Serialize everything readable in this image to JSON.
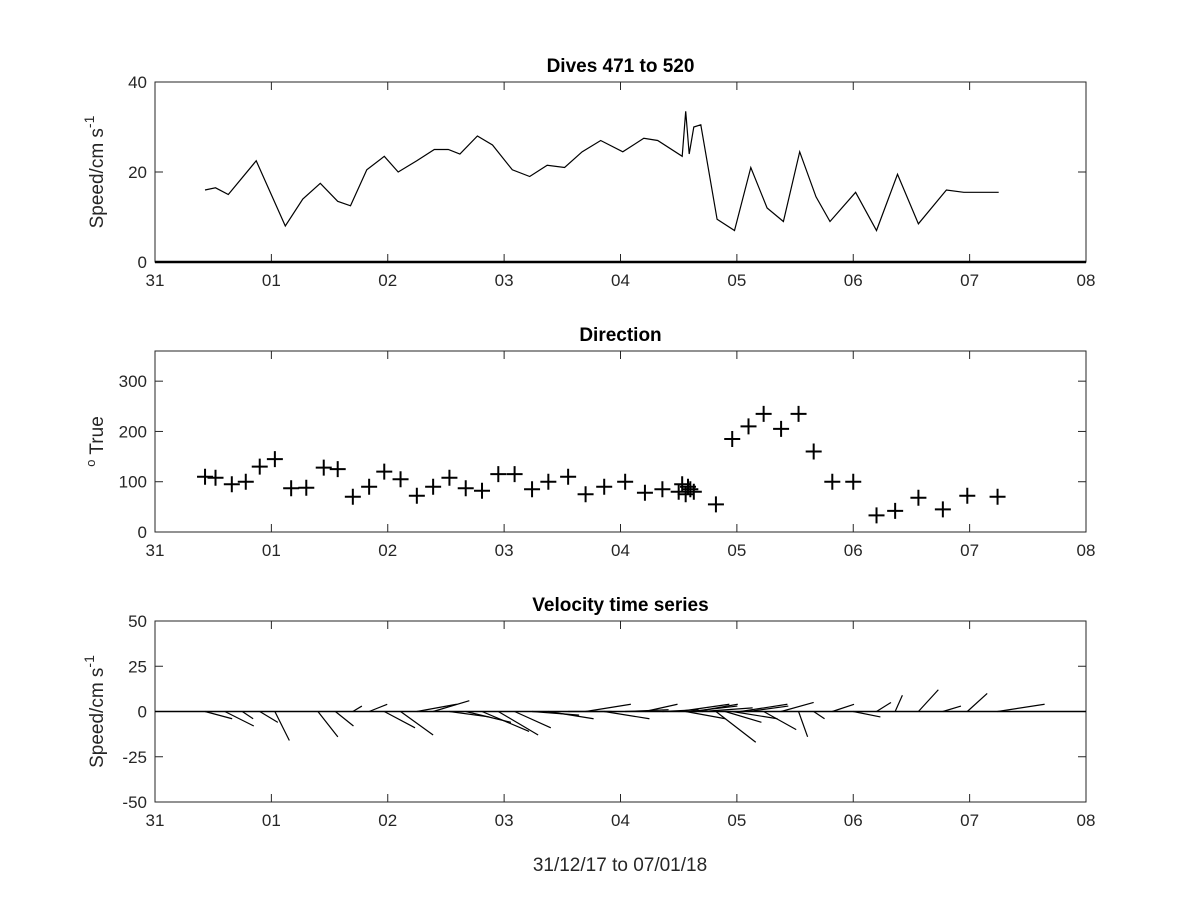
{
  "figure": {
    "xlabel": "31/12/17 to 07/01/18",
    "line_color": "#000000",
    "axes_color": "#262626",
    "background": "#ffffff"
  },
  "chart_data": [
    {
      "type": "line",
      "title": "Dives 471 to 520",
      "ylabel": "Speed/cm s",
      "ylabel_superscript": "-1",
      "x_unit": "days since 31/12/17 00:00",
      "xlim": [
        0,
        8
      ],
      "ylim": [
        0,
        40
      ],
      "x_ticks": [
        "31",
        "01",
        "02",
        "03",
        "04",
        "05",
        "06",
        "07",
        "08"
      ],
      "y_ticks": [
        "0",
        "20",
        "40"
      ],
      "series": [
        {
          "x": [
            0.43,
            0.52,
            0.63,
            0.87,
            1.12,
            1.27,
            1.42,
            1.57,
            1.68,
            1.82,
            1.97,
            2.09,
            2.25,
            2.4,
            2.52,
            2.62,
            2.77,
            2.9,
            3.07,
            3.22,
            3.37,
            3.52,
            3.67,
            3.83,
            4.02,
            4.2,
            4.32,
            4.53,
            4.56,
            4.59,
            4.63,
            4.69,
            4.83,
            4.98,
            5.12,
            5.26,
            5.4,
            5.54,
            5.68,
            5.8,
            6.02,
            6.2,
            6.38,
            6.56,
            6.8,
            6.95,
            7.25
          ],
          "y": [
            16,
            16.5,
            15,
            22.5,
            8,
            14,
            17.5,
            13.5,
            12.5,
            20.5,
            23.5,
            20,
            22.5,
            25,
            25,
            24,
            28,
            26,
            20.5,
            19,
            21.5,
            21,
            24.5,
            27,
            24.5,
            27.5,
            27,
            23.5,
            33.5,
            24,
            30,
            30.5,
            9.5,
            7,
            21,
            12,
            9,
            24.5,
            14.5,
            9,
            15.5,
            7,
            19.5,
            8.5,
            16,
            15.5,
            15.5
          ]
        }
      ]
    },
    {
      "type": "scatter",
      "title": "Direction",
      "ylabel": "True",
      "ylabel_prefix": "o",
      "marker": "+",
      "xlim": [
        0,
        8
      ],
      "ylim": [
        0,
        360
      ],
      "x_ticks": [
        "31",
        "01",
        "02",
        "03",
        "04",
        "05",
        "06",
        "07",
        "08"
      ],
      "y_ticks": [
        "0",
        "100",
        "200",
        "300"
      ],
      "series": [
        {
          "x": [
            0.43,
            0.52,
            0.66,
            0.78,
            0.9,
            1.03,
            1.17,
            1.3,
            1.45,
            1.57,
            1.7,
            1.84,
            1.97,
            2.11,
            2.25,
            2.39,
            2.53,
            2.67,
            2.81,
            2.95,
            3.09,
            3.24,
            3.38,
            3.55,
            3.7,
            3.86,
            4.04,
            4.21,
            4.36,
            4.5,
            4.53,
            4.56,
            4.58,
            4.6,
            4.63,
            4.82,
            4.96,
            5.1,
            5.23,
            5.38,
            5.53,
            5.66,
            5.82,
            6.0,
            6.2,
            6.36,
            6.56,
            6.77,
            6.98,
            7.24
          ],
          "y": [
            110,
            108,
            95,
            100,
            130,
            145,
            87,
            88,
            128,
            125,
            70,
            90,
            120,
            105,
            72,
            90,
            108,
            87,
            82,
            115,
            115,
            85,
            100,
            110,
            75,
            90,
            100,
            78,
            85,
            80,
            95,
            75,
            90,
            85,
            80,
            55,
            185,
            210,
            235,
            205,
            235,
            160,
            100,
            100,
            33,
            42,
            68,
            45,
            72,
            70
          ]
        }
      ]
    },
    {
      "type": "quiver",
      "title": "Velocity time series",
      "ylabel": "Speed/cm s",
      "ylabel_superscript": "-1",
      "xlim": [
        0,
        8
      ],
      "ylim": [
        -50,
        50
      ],
      "x_ticks": [
        "31",
        "01",
        "02",
        "03",
        "04",
        "05",
        "06",
        "07",
        "08"
      ],
      "y_ticks": [
        "50",
        "25",
        "0",
        "-25",
        "-50"
      ],
      "vectors": {
        "x": [
          0.43,
          0.6,
          0.75,
          0.9,
          1.03,
          1.4,
          1.55,
          1.7,
          1.84,
          1.97,
          2.11,
          2.25,
          2.39,
          2.53,
          2.67,
          2.81,
          2.95,
          3.09,
          3.24,
          3.38,
          3.55,
          3.7,
          3.86,
          4.04,
          4.21,
          4.36,
          4.5,
          4.56,
          4.6,
          4.65,
          4.7,
          4.82,
          4.9,
          4.96,
          5.03,
          5.1,
          5.23,
          5.38,
          5.53,
          5.66,
          5.82,
          6.0,
          6.2,
          6.36,
          6.56,
          6.77,
          6.98,
          7.24
        ],
        "u": [
          15,
          16,
          6,
          10,
          8,
          11,
          10,
          5,
          10,
          17,
          18,
          22,
          20,
          22,
          25,
          26,
          22,
          20,
          26,
          25,
          24,
          25,
          25,
          24,
          18,
          20,
          28,
          22,
          26,
          23,
          28,
          22,
          20,
          25,
          26,
          22,
          18,
          18,
          5,
          6,
          12,
          15,
          8,
          4,
          11,
          10,
          11,
          26
        ],
        "v": [
          -4,
          -8,
          -4,
          -6,
          -16,
          -14,
          -8,
          3,
          4,
          -9,
          -13,
          4,
          6,
          -3,
          -6,
          -11,
          -13,
          -9,
          -2,
          -4,
          0,
          4,
          -4,
          1,
          4,
          1,
          4,
          -4,
          3,
          4,
          2,
          -17,
          -6,
          -4,
          4,
          3,
          -10,
          5,
          -14,
          -4,
          4,
          -3,
          5,
          9,
          12,
          3,
          10,
          4
        ]
      }
    }
  ]
}
